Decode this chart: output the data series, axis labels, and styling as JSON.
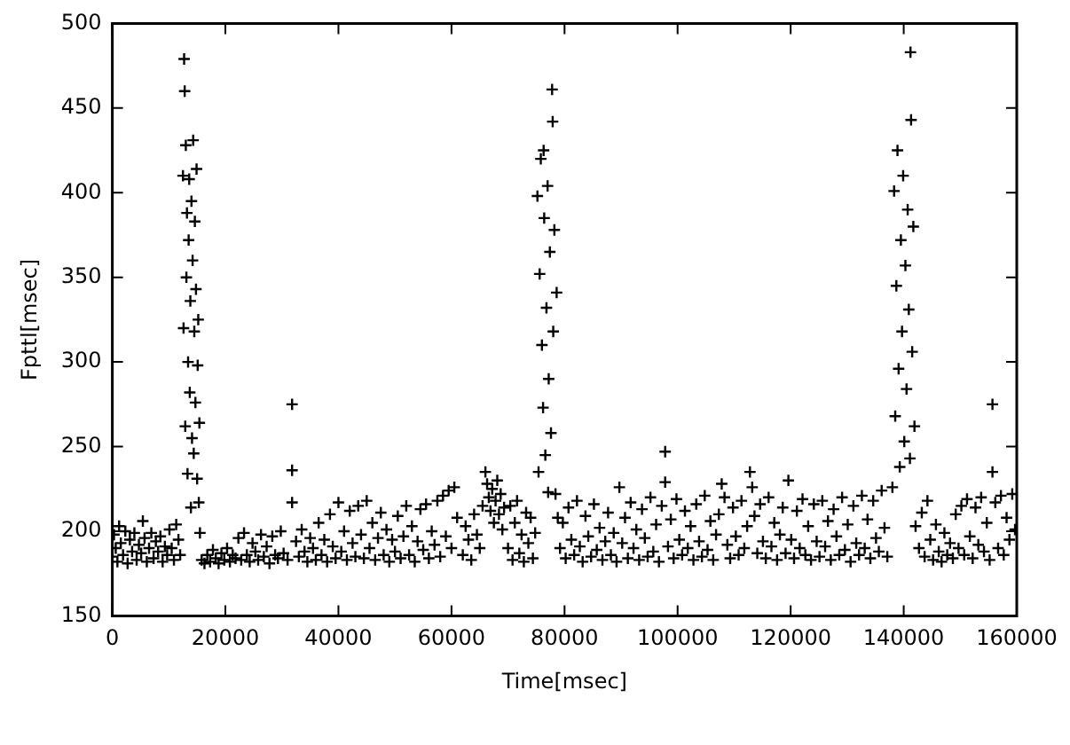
{
  "chart_data": {
    "type": "scatter",
    "xlabel": "Time[msec]",
    "ylabel": "Fpttl[msec]",
    "xlim": [
      0,
      160000
    ],
    "ylim": [
      150,
      500
    ],
    "xticks": [
      0,
      20000,
      40000,
      60000,
      80000,
      100000,
      120000,
      140000,
      160000
    ],
    "yticks": [
      150,
      200,
      250,
      300,
      350,
      400,
      450,
      500
    ],
    "marker": "cross",
    "color": "#000000",
    "x": [
      0,
      300,
      600,
      900,
      1200,
      1500,
      1900,
      2300,
      2700,
      3100,
      3500,
      3900,
      4300,
      4700,
      5100,
      5400,
      5700,
      6100,
      6500,
      6900,
      7300,
      7700,
      8100,
      8500,
      8900,
      9300,
      9700,
      10100,
      10500,
      10900,
      11300,
      11700,
      12000,
      12500,
      12600,
      12700,
      12800,
      12900,
      13000,
      13100,
      13200,
      13300,
      13400,
      13500,
      13600,
      13700,
      13800,
      13900,
      14000,
      14100,
      14200,
      14300,
      14400,
      14500,
      14600,
      14700,
      14800,
      14900,
      15000,
      15100,
      15200,
      15300,
      15400,
      15500,
      15800,
      16300,
      16800,
      17300,
      17800,
      18300,
      18800,
      19300,
      19800,
      20300,
      20800,
      21300,
      21800,
      22300,
      22800,
      23300,
      23800,
      24300,
      24800,
      25300,
      25800,
      26300,
      26800,
      27300,
      27800,
      28300,
      28800,
      29300,
      29800,
      30300,
      31800,
      31800,
      31800,
      31000,
      32500,
      33000,
      33500,
      34000,
      34500,
      35000,
      35500,
      36000,
      36500,
      37000,
      37500,
      38000,
      38500,
      39000,
      39500,
      40000,
      40500,
      41000,
      41500,
      42000,
      42500,
      43000,
      43500,
      44000,
      44500,
      45000,
      45500,
      46000,
      46500,
      47000,
      47500,
      48000,
      48500,
      49000,
      49500,
      50000,
      50500,
      51000,
      51500,
      52000,
      52500,
      53000,
      53500,
      54000,
      54500,
      55000,
      55500,
      56000,
      56500,
      57000,
      57500,
      58000,
      58500,
      59000,
      59500,
      60000,
      60500,
      61000,
      62000,
      62500,
      63000,
      63500,
      64000,
      64500,
      65000,
      65500,
      66000,
      66300,
      66600,
      66900,
      67200,
      67500,
      67800,
      68100,
      68400,
      68700,
      69000,
      69300,
      70000,
      70400,
      70800,
      71200,
      71600,
      72000,
      72400,
      72800,
      73200,
      73600,
      74000,
      74400,
      74800,
      75200,
      75400,
      75600,
      75800,
      76000,
      76200,
      76400,
      76600,
      76800,
      77000,
      77200,
      77400,
      77600,
      77800,
      77900,
      78000,
      78200,
      78400,
      78600,
      78800,
      76300,
      77100,
      79200,
      79700,
      80200,
      80700,
      81200,
      81700,
      82200,
      82700,
      83200,
      83700,
      84200,
      84700,
      85200,
      85700,
      86200,
      86700,
      87200,
      87700,
      88200,
      88700,
      89200,
      89700,
      90200,
      90700,
      91200,
      91700,
      92200,
      92700,
      93200,
      93700,
      94200,
      94700,
      95200,
      95700,
      96200,
      96700,
      97200,
      97800,
      97800,
      98300,
      98800,
      99300,
      99800,
      100300,
      100800,
      101300,
      101800,
      102300,
      102800,
      103300,
      103800,
      104300,
      104800,
      105300,
      105800,
      106300,
      106800,
      107300,
      107800,
      108300,
      108800,
      109300,
      109800,
      110300,
      110800,
      111300,
      111800,
      112300,
      112800,
      113200,
      113600,
      114100,
      114600,
      115100,
      115600,
      116100,
      116600,
      117100,
      117600,
      118100,
      118600,
      119100,
      119600,
      120100,
      120600,
      121100,
      121600,
      122100,
      122600,
      123100,
      123600,
      124100,
      124600,
      125100,
      125600,
      126100,
      126600,
      127100,
      127600,
      128100,
      128600,
      129100,
      129600,
      130100,
      130600,
      131100,
      131600,
      132100,
      132600,
      133100,
      133600,
      134100,
      134600,
      135100,
      135600,
      136100,
      136600,
      137100,
      138000,
      138300,
      138500,
      138700,
      138900,
      139100,
      139300,
      139500,
      139700,
      139900,
      140100,
      140300,
      140500,
      140700,
      140900,
      141100,
      141200,
      141300,
      141500,
      141700,
      141900,
      142100,
      142700,
      143200,
      143700,
      144200,
      144700,
      145200,
      145700,
      146200,
      146700,
      147200,
      147700,
      148200,
      148700,
      149200,
      149700,
      150200,
      150700,
      151200,
      151700,
      152200,
      152700,
      153200,
      153700,
      154200,
      154700,
      155200,
      155700,
      155700,
      156200,
      156700,
      157200,
      157700,
      158200,
      158700,
      159200,
      159700
    ],
    "values": [
      185,
      198,
      190,
      182,
      203,
      193,
      186,
      200,
      181,
      195,
      188,
      199,
      183,
      192,
      187,
      206,
      196,
      182,
      190,
      199,
      184,
      194,
      188,
      197,
      182,
      191,
      186,
      201,
      190,
      183,
      204,
      195,
      186,
      410,
      320,
      479,
      460,
      262,
      428,
      350,
      388,
      234,
      300,
      372,
      408,
      282,
      336,
      214,
      395,
      255,
      360,
      431,
      246,
      318,
      383,
      276,
      343,
      414,
      231,
      298,
      325,
      217,
      264,
      199,
      183,
      181,
      186,
      182,
      189,
      184,
      181,
      187,
      183,
      190,
      182,
      186,
      184,
      196,
      183,
      199,
      186,
      182,
      193,
      188,
      183,
      198,
      185,
      191,
      181,
      197,
      186,
      184,
      200,
      187,
      275,
      236,
      217,
      183,
      194,
      185,
      201,
      188,
      182,
      196,
      190,
      183,
      205,
      186,
      195,
      182,
      210,
      191,
      184,
      217,
      188,
      200,
      183,
      212,
      193,
      185,
      215,
      198,
      184,
      218,
      190,
      205,
      183,
      196,
      211,
      186,
      201,
      182,
      195,
      188,
      209,
      184,
      197,
      215,
      186,
      203,
      182,
      194,
      213,
      189,
      216,
      184,
      200,
      192,
      218,
      185,
      221,
      197,
      224,
      190,
      226,
      208,
      186,
      203,
      195,
      183,
      210,
      198,
      190,
      215,
      235,
      228,
      220,
      212,
      225,
      205,
      218,
      230,
      210,
      222,
      201,
      214,
      190,
      215,
      183,
      205,
      218,
      187,
      198,
      182,
      211,
      193,
      208,
      184,
      199,
      398,
      235,
      352,
      420,
      310,
      273,
      385,
      245,
      332,
      404,
      290,
      365,
      258,
      461,
      442,
      318,
      378,
      222,
      341,
      208,
      425,
      223,
      190,
      205,
      184,
      214,
      195,
      186,
      218,
      191,
      182,
      209,
      197,
      185,
      216,
      189,
      202,
      183,
      194,
      211,
      186,
      199,
      182,
      226,
      193,
      208,
      184,
      217,
      190,
      201,
      183,
      213,
      196,
      185,
      220,
      188,
      204,
      182,
      215,
      247,
      229,
      191,
      207,
      184,
      219,
      195,
      186,
      212,
      190,
      203,
      183,
      216,
      194,
      185,
      221,
      189,
      206,
      183,
      198,
      210,
      228,
      220,
      192,
      184,
      214,
      197,
      186,
      218,
      190,
      203,
      235,
      226,
      209,
      187,
      216,
      194,
      184,
      220,
      191,
      205,
      183,
      198,
      214,
      187,
      230,
      195,
      184,
      212,
      190,
      219,
      186,
      203,
      183,
      216,
      194,
      185,
      218,
      191,
      206,
      183,
      213,
      197,
      186,
      220,
      189,
      204,
      182,
      215,
      193,
      186,
      221,
      190,
      207,
      184,
      218,
      196,
      188,
      224,
      202,
      185,
      226,
      401,
      268,
      345,
      425,
      296,
      238,
      372,
      318,
      410,
      253,
      357,
      284,
      390,
      331,
      243,
      483,
      443,
      306,
      380,
      262,
      203,
      190,
      211,
      185,
      218,
      195,
      183,
      204,
      188,
      182,
      199,
      186,
      193,
      184,
      210,
      190,
      215,
      186,
      219,
      197,
      184,
      214,
      192,
      220,
      188,
      205,
      183,
      275,
      235,
      217,
      190,
      221,
      186,
      208,
      195,
      222,
      201
    ]
  }
}
